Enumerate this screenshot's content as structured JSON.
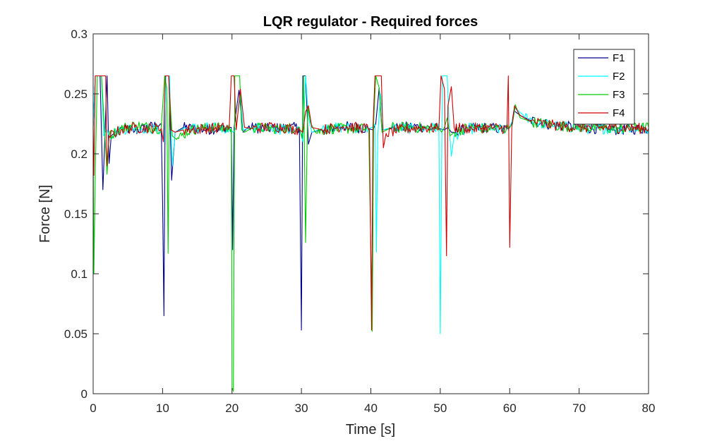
{
  "chart_data": {
    "type": "line",
    "title": "LQR regulator - Required forces",
    "xlabel": "Time [s]",
    "ylabel": "Force [N]",
    "xlim": [
      0,
      80
    ],
    "ylim": [
      0,
      0.3
    ],
    "xticks": [
      0,
      10,
      20,
      30,
      40,
      50,
      60,
      70,
      80
    ],
    "xtick_labels": [
      "0",
      "10",
      "20",
      "30",
      "40",
      "50",
      "60",
      "70",
      "80"
    ],
    "yticks": [
      0,
      0.05,
      0.1,
      0.15,
      0.2,
      0.25,
      0.3
    ],
    "ytick_labels": [
      "0",
      "0.05",
      "0.1",
      "0.15",
      "0.2",
      "0.25",
      "0.3"
    ],
    "grid": false,
    "legend_position": "top-right",
    "series": [
      {
        "name": "F1",
        "color": "#00008B",
        "points": [
          [
            0,
            0.222
          ],
          [
            0.3,
            0.265
          ],
          [
            1.0,
            0.265
          ],
          [
            1.4,
            0.17
          ],
          [
            1.7,
            0.215
          ],
          [
            2.0,
            0.265
          ],
          [
            2.3,
            0.192
          ],
          [
            2.6,
            0.215
          ],
          [
            4,
            0.222
          ],
          [
            6,
            0.219
          ],
          [
            9.8,
            0.225
          ],
          [
            10.0,
            0.16
          ],
          [
            10.2,
            0.065
          ],
          [
            10.4,
            0.265
          ],
          [
            10.9,
            0.265
          ],
          [
            11.3,
            0.178
          ],
          [
            11.8,
            0.218
          ],
          [
            13,
            0.222
          ],
          [
            16,
            0.22
          ],
          [
            19.6,
            0.222
          ],
          [
            19.9,
            0.222
          ],
          [
            20.1,
            0.12
          ],
          [
            20.3,
            0.222
          ],
          [
            21.0,
            0.253
          ],
          [
            21.6,
            0.218
          ],
          [
            22.3,
            0.222
          ],
          [
            25,
            0.221
          ],
          [
            29.7,
            0.222
          ],
          [
            30.0,
            0.053
          ],
          [
            30.2,
            0.265
          ],
          [
            30.6,
            0.265
          ],
          [
            31.0,
            0.208
          ],
          [
            31.5,
            0.218
          ],
          [
            33,
            0.22
          ],
          [
            36,
            0.223
          ],
          [
            39.6,
            0.221
          ],
          [
            40.3,
            0.22
          ],
          [
            40.7,
            0.225
          ],
          [
            41.2,
            0.255
          ],
          [
            41.6,
            0.22
          ],
          [
            43,
            0.221
          ],
          [
            46,
            0.223
          ],
          [
            49.8,
            0.221
          ],
          [
            50.6,
            0.22
          ],
          [
            51.1,
            0.222
          ],
          [
            51.6,
            0.218
          ],
          [
            52,
            0.218
          ],
          [
            54,
            0.221
          ],
          [
            57,
            0.222
          ],
          [
            59.8,
            0.22
          ],
          [
            60.3,
            0.225
          ],
          [
            60.6,
            0.236
          ],
          [
            61.5,
            0.232
          ],
          [
            63,
            0.228
          ],
          [
            66,
            0.224
          ],
          [
            70,
            0.222
          ],
          [
            75,
            0.22
          ],
          [
            80,
            0.221
          ]
        ]
      },
      {
        "name": "F2",
        "color": "#00FFFF",
        "points": [
          [
            0,
            0.222
          ],
          [
            0.3,
            0.265
          ],
          [
            1.2,
            0.265
          ],
          [
            1.5,
            0.215
          ],
          [
            2.0,
            0.22
          ],
          [
            2.3,
            0.215
          ],
          [
            4,
            0.22
          ],
          [
            6,
            0.222
          ],
          [
            9.8,
            0.22
          ],
          [
            10.2,
            0.21
          ],
          [
            10.5,
            0.265
          ],
          [
            11.0,
            0.265
          ],
          [
            11.4,
            0.19
          ],
          [
            11.8,
            0.218
          ],
          [
            13,
            0.221
          ],
          [
            16,
            0.222
          ],
          [
            19.6,
            0.221
          ],
          [
            20.2,
            0.218
          ],
          [
            20.6,
            0.222
          ],
          [
            21.2,
            0.25
          ],
          [
            21.6,
            0.22
          ],
          [
            23,
            0.222
          ],
          [
            26,
            0.22
          ],
          [
            29.7,
            0.222
          ],
          [
            30.2,
            0.21
          ],
          [
            30.6,
            0.265
          ],
          [
            31.0,
            0.23
          ],
          [
            31.5,
            0.218
          ],
          [
            33,
            0.221
          ],
          [
            36,
            0.222
          ],
          [
            39.6,
            0.221
          ],
          [
            40.2,
            0.222
          ],
          [
            40.6,
            0.225
          ],
          [
            40.8,
            0.118
          ],
          [
            41.0,
            0.215
          ],
          [
            41.4,
            0.25
          ],
          [
            41.8,
            0.22
          ],
          [
            43,
            0.222
          ],
          [
            46,
            0.221
          ],
          [
            49.8,
            0.222
          ],
          [
            50.0,
            0.05
          ],
          [
            50.3,
            0.265
          ],
          [
            51.0,
            0.265
          ],
          [
            51.3,
            0.22
          ],
          [
            51.6,
            0.198
          ],
          [
            52,
            0.215
          ],
          [
            54,
            0.221
          ],
          [
            57,
            0.221
          ],
          [
            59.8,
            0.22
          ],
          [
            60.4,
            0.228
          ],
          [
            60.8,
            0.238
          ],
          [
            62,
            0.232
          ],
          [
            64,
            0.226
          ],
          [
            67,
            0.223
          ],
          [
            71,
            0.221
          ],
          [
            75,
            0.221
          ],
          [
            80,
            0.221
          ]
        ]
      },
      {
        "name": "F3",
        "color": "#00CC00",
        "points": [
          [
            0,
            0.222
          ],
          [
            0.1,
            0.1
          ],
          [
            0.3,
            0.185
          ],
          [
            0.6,
            0.265
          ],
          [
            1.2,
            0.265
          ],
          [
            1.6,
            0.225
          ],
          [
            2.0,
            0.183
          ],
          [
            2.3,
            0.215
          ],
          [
            4,
            0.221
          ],
          [
            6,
            0.224
          ],
          [
            9.8,
            0.221
          ],
          [
            10.3,
            0.265
          ],
          [
            10.6,
            0.255
          ],
          [
            10.8,
            0.117
          ],
          [
            11.0,
            0.25
          ],
          [
            11.4,
            0.215
          ],
          [
            12,
            0.212
          ],
          [
            14,
            0.22
          ],
          [
            17,
            0.222
          ],
          [
            19.9,
            0.221
          ],
          [
            20.0,
            0.005
          ],
          [
            20.2,
            0.002
          ],
          [
            20.4,
            0.265
          ],
          [
            21.1,
            0.265
          ],
          [
            21.4,
            0.22
          ],
          [
            21.8,
            0.218
          ],
          [
            23,
            0.222
          ],
          [
            26,
            0.221
          ],
          [
            29.7,
            0.222
          ],
          [
            30.1,
            0.213
          ],
          [
            30.3,
            0.265
          ],
          [
            30.6,
            0.126
          ],
          [
            30.9,
            0.24
          ],
          [
            31.3,
            0.226
          ],
          [
            32,
            0.218
          ],
          [
            34,
            0.221
          ],
          [
            37,
            0.221
          ],
          [
            39.7,
            0.221
          ],
          [
            40.2,
            0.052
          ],
          [
            40.4,
            0.225
          ],
          [
            40.7,
            0.265
          ],
          [
            41.2,
            0.255
          ],
          [
            41.6,
            0.218
          ],
          [
            43,
            0.222
          ],
          [
            46,
            0.222
          ],
          [
            49.8,
            0.221
          ],
          [
            50.2,
            0.218
          ],
          [
            50.6,
            0.222
          ],
          [
            51.0,
            0.23
          ],
          [
            51.4,
            0.215
          ],
          [
            52,
            0.218
          ],
          [
            54,
            0.222
          ],
          [
            57,
            0.221
          ],
          [
            59.8,
            0.221
          ],
          [
            60.4,
            0.225
          ],
          [
            60.8,
            0.241
          ],
          [
            61.5,
            0.23
          ],
          [
            63,
            0.227
          ],
          [
            66,
            0.224
          ],
          [
            70,
            0.222
          ],
          [
            75,
            0.221
          ],
          [
            80,
            0.222
          ]
        ]
      },
      {
        "name": "F4",
        "color": "#CC0000",
        "points": [
          [
            0,
            0.222
          ],
          [
            0.1,
            0.182
          ],
          [
            0.3,
            0.265
          ],
          [
            1.8,
            0.265
          ],
          [
            2.0,
            0.19
          ],
          [
            2.3,
            0.215
          ],
          [
            4,
            0.22
          ],
          [
            6,
            0.222
          ],
          [
            9.8,
            0.221
          ],
          [
            10.1,
            0.21
          ],
          [
            10.4,
            0.265
          ],
          [
            10.9,
            0.265
          ],
          [
            11.2,
            0.22
          ],
          [
            11.8,
            0.218
          ],
          [
            13,
            0.22
          ],
          [
            16,
            0.221
          ],
          [
            19.6,
            0.222
          ],
          [
            19.9,
            0.265
          ],
          [
            20.3,
            0.265
          ],
          [
            20.6,
            0.22
          ],
          [
            21.2,
            0.254
          ],
          [
            21.8,
            0.222
          ],
          [
            23,
            0.221
          ],
          [
            26,
            0.223
          ],
          [
            29.7,
            0.22
          ],
          [
            30.2,
            0.218
          ],
          [
            30.6,
            0.235
          ],
          [
            31.0,
            0.24
          ],
          [
            31.5,
            0.222
          ],
          [
            33,
            0.22
          ],
          [
            36,
            0.223
          ],
          [
            39.8,
            0.221
          ],
          [
            40.1,
            0.053
          ],
          [
            40.3,
            0.222
          ],
          [
            40.6,
            0.265
          ],
          [
            41.5,
            0.265
          ],
          [
            41.8,
            0.205
          ],
          [
            42.2,
            0.217
          ],
          [
            44,
            0.22
          ],
          [
            47,
            0.222
          ],
          [
            49.8,
            0.221
          ],
          [
            50.1,
            0.265
          ],
          [
            50.6,
            0.254
          ],
          [
            50.9,
            0.115
          ],
          [
            51.1,
            0.24
          ],
          [
            51.6,
            0.256
          ],
          [
            52,
            0.222
          ],
          [
            54,
            0.221
          ],
          [
            57,
            0.222
          ],
          [
            59.6,
            0.221
          ],
          [
            59.8,
            0.265
          ],
          [
            60.0,
            0.122
          ],
          [
            60.3,
            0.222
          ],
          [
            60.7,
            0.24
          ],
          [
            61.5,
            0.232
          ],
          [
            63,
            0.227
          ],
          [
            66,
            0.224
          ],
          [
            70,
            0.222
          ],
          [
            75,
            0.222
          ],
          [
            80,
            0.221
          ]
        ]
      }
    ]
  }
}
